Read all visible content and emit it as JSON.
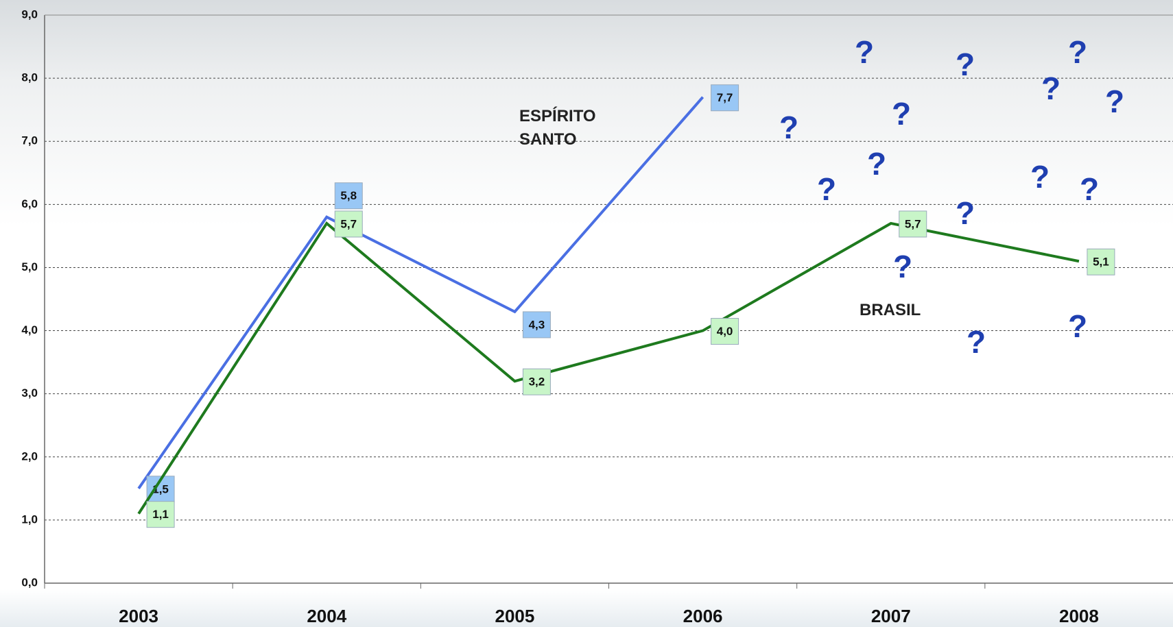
{
  "chart_data": {
    "type": "line",
    "categories": [
      "2003",
      "2004",
      "2005",
      "2006",
      "2007",
      "2008"
    ],
    "series": [
      {
        "name": "ESPÍRITO SANTO",
        "color": "#4a6fe3",
        "label_color": "#99c7f5",
        "values": [
          1.5,
          5.8,
          4.3,
          7.7,
          null,
          null
        ],
        "value_labels": [
          "1,5",
          "5,8",
          "4,3",
          "7,7",
          null,
          null
        ]
      },
      {
        "name": "BRASIL",
        "color": "#1e7a1e",
        "label_color": "#c8f5c8",
        "values": [
          1.1,
          5.7,
          3.2,
          4.0,
          5.7,
          5.1
        ],
        "value_labels": [
          "1,1",
          "5,7",
          "3,2",
          "4,0",
          "5,7",
          "5,1"
        ]
      }
    ],
    "ylim": [
      0,
      9
    ],
    "yticks": [
      {
        "value": 0,
        "label": "0,0"
      },
      {
        "value": 1,
        "label": "1,0"
      },
      {
        "value": 2,
        "label": "2,0"
      },
      {
        "value": 3,
        "label": "3,0"
      },
      {
        "value": 4,
        "label": "4,0"
      },
      {
        "value": 5,
        "label": "5,0"
      },
      {
        "value": 6,
        "label": "6,0"
      },
      {
        "value": 7,
        "label": "7,0"
      },
      {
        "value": 8,
        "label": "8,0"
      },
      {
        "value": 9,
        "label": "9,0"
      }
    ],
    "grid": true,
    "annotations": [
      "?",
      "?",
      "?",
      "?",
      "?",
      "?",
      "?",
      "?",
      "?",
      "?",
      "?",
      "?",
      "?",
      "?",
      "?"
    ]
  }
}
